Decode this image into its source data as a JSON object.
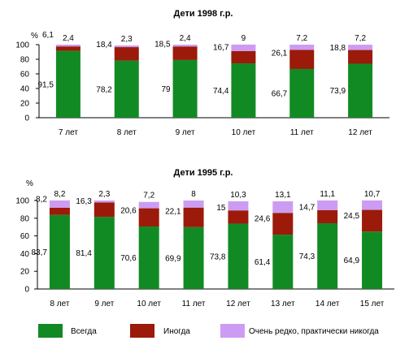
{
  "legend": {
    "items": [
      {
        "label": "Всегда",
        "color": "#128a24"
      },
      {
        "label": "Иногда",
        "color": "#9b1a0a"
      },
      {
        "label": "Очень редко, практически никогда",
        "color": "#cc9cf2"
      }
    ]
  },
  "chart_data": [
    {
      "type": "bar",
      "stacked": true,
      "title": "Дети 1998 г.р.",
      "y_unit": "%",
      "ylim": [
        0,
        100
      ],
      "yticks": [
        "0",
        "20",
        "40",
        "60",
        "80",
        "100"
      ],
      "categories": [
        "7 лет",
        "8 лет",
        "9 лет",
        "10 лет",
        "11 лет",
        "12 лет"
      ],
      "series": [
        {
          "name": "Всегда",
          "values": [
            91.5,
            78.2,
            79,
            74.4,
            66.7,
            73.9
          ],
          "labels": [
            "91,5",
            "78,2",
            "79",
            "74,4",
            "66,7",
            "73,9"
          ]
        },
        {
          "name": "Иногда",
          "values": [
            6.1,
            18.4,
            18.5,
            16.7,
            26.1,
            18.8
          ],
          "labels": [
            "6,1",
            "18,4",
            "18,5",
            "16,7",
            "26,1",
            "18,8"
          ]
        },
        {
          "name": "Очень редко, практически никогда",
          "values": [
            2.4,
            2.3,
            2.4,
            9,
            7.2,
            7.2
          ],
          "labels": [
            "2,4",
            "2,3",
            "2,4",
            "9",
            "7,2",
            "7,2"
          ]
        }
      ]
    },
    {
      "type": "bar",
      "stacked": true,
      "title": "Дети 1995 г.р.",
      "y_unit": "%",
      "ylim": [
        0,
        100
      ],
      "yticks": [
        "0",
        "20",
        "40",
        "60",
        "80",
        "100"
      ],
      "categories": [
        "8 лет",
        "9 лет",
        "10 лет",
        "11 лет",
        "12 лет",
        "13 лет",
        "14 лет",
        "15 лет"
      ],
      "series": [
        {
          "name": "Всегда",
          "values": [
            83.7,
            81.4,
            70.6,
            69.9,
            73.8,
            61.4,
            74.3,
            64.9
          ],
          "labels": [
            "83,7",
            "81,4",
            "70,6",
            "69,9",
            "73,8",
            "61,4",
            "74,3",
            "64,9"
          ]
        },
        {
          "name": "Иногда",
          "values": [
            8.2,
            16.3,
            20.6,
            22.1,
            15,
            24.6,
            14.7,
            24.5
          ],
          "labels": [
            "8,2",
            "16,3",
            "20,6",
            "22,1",
            "15",
            "24,6",
            "14,7",
            "24,5"
          ]
        },
        {
          "name": "Очень редко, практически никогда",
          "values": [
            8.2,
            2.3,
            7.2,
            8,
            10.3,
            13.1,
            11.1,
            10.7
          ],
          "labels": [
            "8,2",
            "2,3",
            "7,2",
            "8",
            "10,3",
            "13,1",
            "11,1",
            "10,7"
          ]
        }
      ]
    }
  ]
}
